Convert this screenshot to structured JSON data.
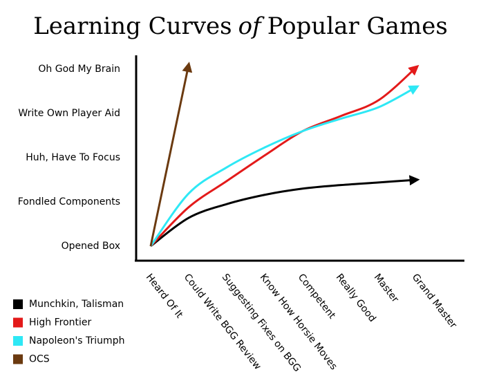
{
  "chart_data": {
    "type": "line",
    "title_parts": [
      "Learning Curves",
      "of",
      "Popular Games"
    ],
    "categories": [
      "Heard Of It",
      "Could Write BGG Review",
      "Suggesting Fixes on BGG",
      "Know How Horsie Moves",
      "Competent",
      "Really Good",
      "Master",
      "Grand Master"
    ],
    "y_categories": [
      "Opened Box",
      "Fondled Components",
      "Huh, Have To Focus",
      "Write Own Player Aid",
      "Oh God My Brain"
    ],
    "series": [
      {
        "name": "Munchkin, Talisman",
        "color": "#000000",
        "values": [
          0,
          0.64,
          0.95,
          1.16,
          1.3,
          1.38,
          1.44,
          1.5
        ]
      },
      {
        "name": "High Frontier",
        "color": "#e31a1a",
        "values": [
          0,
          0.88,
          1.47,
          2.05,
          2.6,
          2.94,
          3.3,
          4.05
        ]
      },
      {
        "name": "Napoleon's Triumph",
        "color": "#2ee8f5",
        "values": [
          0,
          1.19,
          1.78,
          2.23,
          2.6,
          2.88,
          3.14,
          3.6
        ]
      },
      {
        "name": "OCS",
        "color": "#6b3a10",
        "values": [
          0,
          4.1,
          null,
          null,
          null,
          null,
          null,
          null
        ]
      }
    ]
  }
}
